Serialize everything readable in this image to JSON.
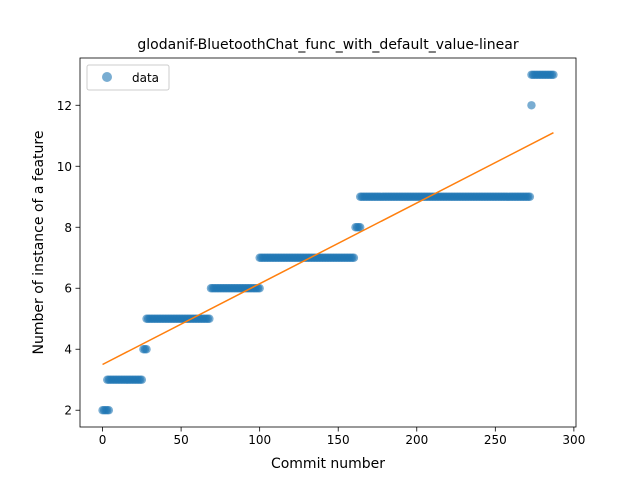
{
  "chart_data": {
    "type": "scatter",
    "title": "glodanif-BluetoothChat_func_with_default_value-linear",
    "xlabel": "Commit number",
    "ylabel": "Number of instance of a feature",
    "xlim": [
      -14.35,
      301.35
    ],
    "ylim": [
      1.45,
      13.55
    ],
    "xticks": [
      0,
      50,
      100,
      150,
      200,
      250,
      300
    ],
    "yticks": [
      2,
      4,
      6,
      8,
      10,
      12
    ],
    "grid": false,
    "legend_position": "top-left",
    "colors": {
      "points": "#1f77b4",
      "line": "#ff7f0e"
    },
    "point_alpha": 0.6,
    "series": [
      {
        "name": "data",
        "kind": "scatter",
        "segments": [
          {
            "x_start": 0,
            "x_end": 4,
            "y": 2
          },
          {
            "x_start": 3,
            "x_end": 25,
            "y": 3
          },
          {
            "x_start": 26,
            "x_end": 28,
            "y": 4
          },
          {
            "x_start": 28,
            "x_end": 68,
            "y": 5
          },
          {
            "x_start": 69,
            "x_end": 100,
            "y": 6
          },
          {
            "x_start": 100,
            "x_end": 160,
            "y": 7
          },
          {
            "x_start": 161,
            "x_end": 164,
            "y": 8
          },
          {
            "x_start": 164,
            "x_end": 272,
            "y": 9
          },
          {
            "x_start": 273,
            "x_end": 273,
            "y": 12
          },
          {
            "x_start": 273,
            "x_end": 287,
            "y": 13
          }
        ]
      },
      {
        "name": "",
        "kind": "line",
        "x": [
          0,
          287
        ],
        "y": [
          3.5,
          11.1
        ]
      }
    ]
  }
}
